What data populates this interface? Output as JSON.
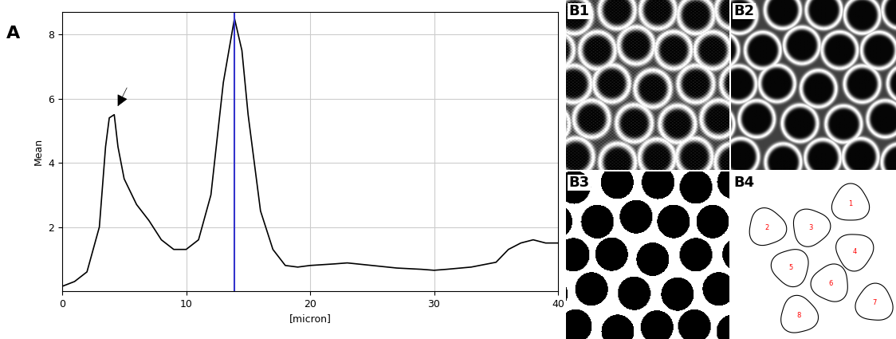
{
  "chart_data": {
    "type": "line",
    "xlabel": "[micron]",
    "ylabel": "Mean",
    "x": [
      0,
      1,
      2,
      3,
      3.5,
      3.8,
      4.2,
      4.5,
      5,
      6,
      7,
      8,
      9,
      10,
      11,
      12,
      13,
      13.9,
      14.5,
      15,
      16,
      17,
      18,
      19,
      20,
      22,
      23,
      25,
      27,
      29,
      30,
      31,
      33,
      35,
      36,
      37,
      38,
      39,
      40
    ],
    "values": [
      0.15,
      0.3,
      0.6,
      2.0,
      4.5,
      5.4,
      5.5,
      4.5,
      3.5,
      2.7,
      2.2,
      1.6,
      1.3,
      1.3,
      1.6,
      3.0,
      6.5,
      8.5,
      7.5,
      5.5,
      2.5,
      1.3,
      0.8,
      0.75,
      0.8,
      0.85,
      0.88,
      0.8,
      0.72,
      0.68,
      0.65,
      0.68,
      0.75,
      0.9,
      1.3,
      1.5,
      1.6,
      1.5,
      1.5
    ],
    "color": "#000000",
    "xlim": [
      0,
      40
    ],
    "xticks": [
      0,
      10,
      20,
      30,
      40
    ],
    "ylim": [
      0,
      8.7
    ],
    "yticks": [
      2,
      4,
      6,
      8
    ],
    "grid": true,
    "annotations": [
      {
        "type": "vline",
        "x": 13.9,
        "color": "#3333cc"
      },
      {
        "type": "arrow",
        "x": 4.4,
        "y": 5.7,
        "color": "#000000"
      }
    ]
  },
  "panel_labels": [
    "A",
    "B1",
    "B2",
    "B3",
    "B4"
  ],
  "cell_labels": [
    "1",
    "2",
    "3",
    "4",
    "5",
    "6",
    "7",
    "8"
  ]
}
